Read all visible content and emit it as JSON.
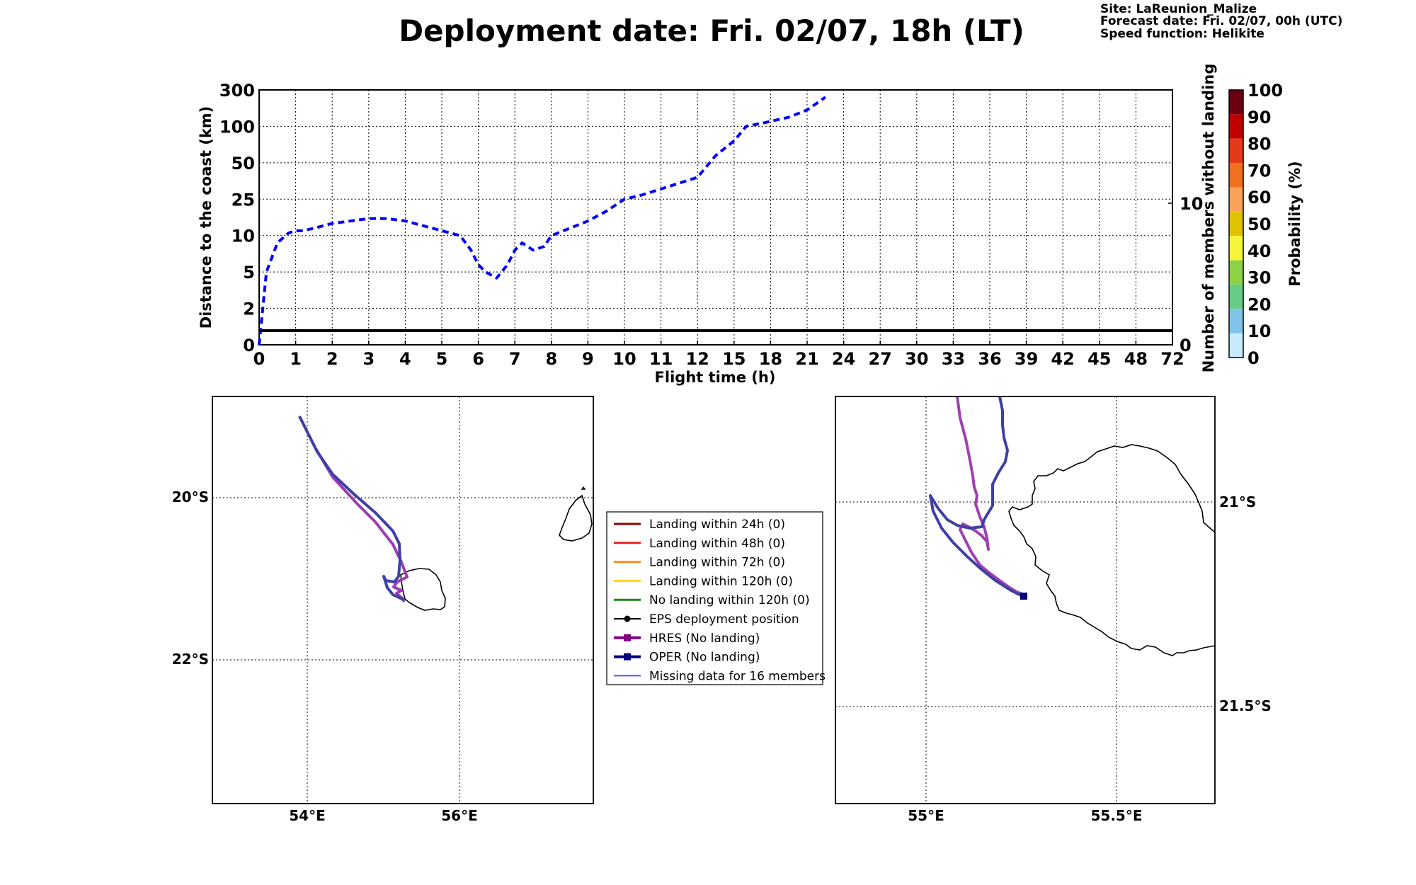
{
  "header": {
    "title": "Deployment date: Fri. 02/07, 18h (LT)",
    "site": "Site: LaReunion_Malize",
    "forecast": "Forecast date: Fri. 02/07, 00h (UTC)",
    "speed": "Speed function: Helikite"
  },
  "chart_data": [
    {
      "type": "line",
      "xlabel": "Flight time (h)",
      "ylabel": "Distance to the coast (km)",
      "y2label": "Number of members without landing",
      "x_ticks": [
        "0",
        "1",
        "2",
        "3",
        "4",
        "5",
        "6",
        "7",
        "8",
        "9",
        "10",
        "11",
        "12",
        "15",
        "18",
        "21",
        "24",
        "27",
        "30",
        "33",
        "36",
        "39",
        "42",
        "45",
        "48",
        "72"
      ],
      "y_ticks": [
        "0",
        "2",
        "5",
        "10",
        "25",
        "50",
        "100",
        "300"
      ],
      "y2_ticks": [
        "0",
        "10"
      ],
      "grid": true,
      "series": [
        {
          "name": "OPER",
          "style": "dashed",
          "color": "#0000ff",
          "x": [
            0,
            0.2,
            0.5,
            0.8,
            1.0,
            1.2,
            1.5,
            2.0,
            2.5,
            3.0,
            3.5,
            4.0,
            4.5,
            5.0,
            5.5,
            5.8,
            6.0,
            6.2,
            6.5,
            6.8,
            7.0,
            7.2,
            7.5,
            7.8,
            8.0,
            8.5,
            9.0,
            9.5,
            10.0,
            10.5,
            11.0,
            11.5,
            12.0,
            13.5,
            15.0,
            16.0,
            17.5,
            19.5,
            21.0,
            22.5
          ],
          "y": [
            0,
            5,
            9,
            11,
            12,
            12,
            13,
            15,
            16,
            17,
            17,
            16,
            14,
            12,
            10,
            8,
            6,
            5,
            4.5,
            6,
            8,
            9,
            8,
            8.5,
            10,
            13,
            16,
            20,
            25,
            28,
            32,
            36,
            40,
            60,
            80,
            100,
            120,
            150,
            190,
            260
          ]
        },
        {
          "name": "members without landing",
          "style": "solid",
          "color": "#000000",
          "x": [
            0,
            72
          ],
          "y2": [
            1,
            1
          ]
        }
      ],
      "colorbar": {
        "label": "Probability (%)",
        "ticks": [
          "0",
          "10",
          "20",
          "30",
          "40",
          "50",
          "60",
          "70",
          "80",
          "90",
          "100"
        ],
        "colors": [
          "#c6ecfb",
          "#7fc4e8",
          "#66cc88",
          "#8ed246",
          "#f5f53a",
          "#e0c200",
          "#f8a25a",
          "#f07020",
          "#e53a1a",
          "#c00000",
          "#6b0012"
        ]
      }
    },
    {
      "type": "map",
      "name": "overview",
      "lon_ticks": [
        "54°E",
        "56°E"
      ],
      "lat_ticks": [
        "20°S",
        "22°S"
      ],
      "tracks": [
        {
          "name": "HRES",
          "color": "#8e3aa8",
          "points": [
            [
              53.9,
              -19.2
            ],
            [
              54.3,
              -19.8
            ],
            [
              54.8,
              -20.3
            ],
            [
              55.1,
              -20.7
            ],
            [
              55.15,
              -21.0
            ],
            [
              55.05,
              -21.05
            ],
            [
              55.2,
              -21.2
            ]
          ]
        },
        {
          "name": "OPER",
          "color": "#3a3aa8",
          "points": [
            [
              53.9,
              -19.2
            ],
            [
              54.3,
              -19.8
            ],
            [
              54.8,
              -20.25
            ],
            [
              55.2,
              -20.6
            ],
            [
              55.2,
              -20.95
            ],
            [
              55.0,
              -21.0
            ],
            [
              55.25,
              -21.2
            ]
          ]
        }
      ]
    },
    {
      "type": "map",
      "name": "zoom",
      "lon_ticks": [
        "55°E",
        "55.5°E"
      ],
      "lat_ticks": [
        "21°S",
        "21.5°S"
      ],
      "tracks": [
        {
          "name": "HRES",
          "color": "#a040b0"
        },
        {
          "name": "OPER",
          "color": "#3a3aa8"
        }
      ]
    }
  ],
  "legend": {
    "items": [
      {
        "label": "Landing within 24h (0)",
        "color": "#8b0000",
        "marker": "none",
        "width": 3
      },
      {
        "label": "Landing within 48h (0)",
        "color": "#e62020",
        "marker": "none",
        "width": 3
      },
      {
        "label": "Landing within 72h (0)",
        "color": "#ff8c1a",
        "marker": "none",
        "width": 3
      },
      {
        "label": "Landing within 120h (0)",
        "color": "#ffd21a",
        "marker": "none",
        "width": 3
      },
      {
        "label": "No landing within 120h (0)",
        "color": "#1a8a1a",
        "marker": "none",
        "width": 3
      },
      {
        "label": "EPS deployment position",
        "color": "#000000",
        "marker": "circle",
        "width": 2
      },
      {
        "label": "HRES (No landing)",
        "color": "#800080",
        "marker": "square",
        "width": 4
      },
      {
        "label": "OPER (No landing)",
        "color": "#000080",
        "marker": "square",
        "width": 4
      },
      {
        "label": "Missing data for 16 members",
        "color": "#4f4ff0",
        "marker": "none",
        "width": 2
      }
    ]
  }
}
